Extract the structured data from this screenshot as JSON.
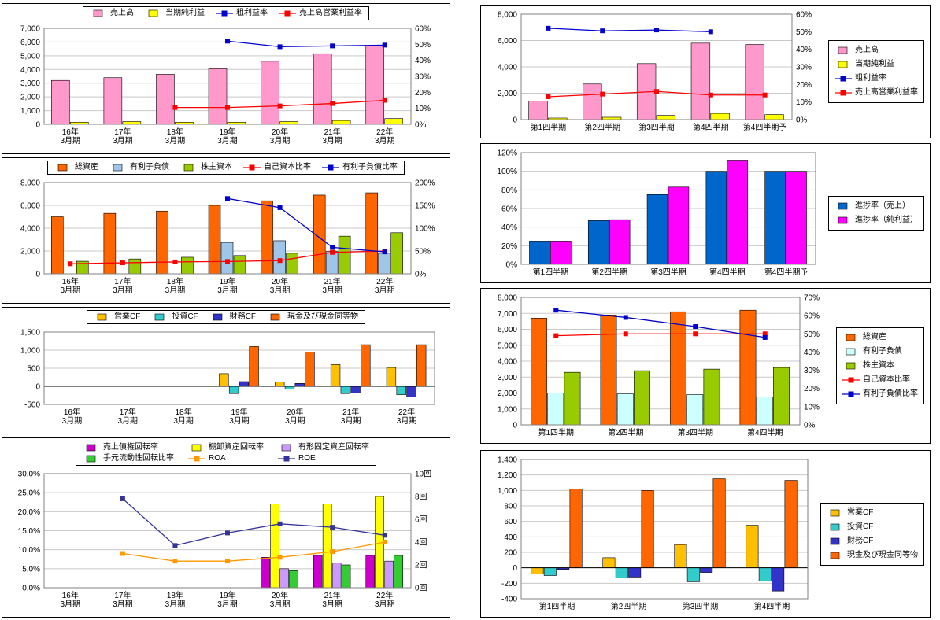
{
  "page": {
    "name": "financial-analysis-dashboard"
  },
  "chart_data": [
    {
      "id": "annual-sales-profit",
      "type": "bar",
      "legend_position": "top",
      "categories": [
        "16年 3月期",
        "17年 3月期",
        "18年 3月期",
        "19年 3月期",
        "20年 3月期",
        "21年 3月期",
        "22年 3月期"
      ],
      "series": [
        {
          "name": "売上高",
          "kind": "bar",
          "color": "#FF99CC",
          "axis": "left",
          "values": [
            3200,
            3400,
            3650,
            4050,
            4600,
            5150,
            5700
          ]
        },
        {
          "name": "当期純利益",
          "kind": "bar",
          "color": "#FFFF00",
          "axis": "left",
          "values": [
            150,
            200,
            150,
            150,
            200,
            280,
            420
          ]
        },
        {
          "name": "粗利益率",
          "kind": "line",
          "color": "#0000CC",
          "axis": "right",
          "values": [
            null,
            null,
            null,
            52,
            48.5,
            49,
            49.5
          ]
        },
        {
          "name": "売上高営業利益率",
          "kind": "line",
          "color": "#FF0000",
          "axis": "right",
          "values": [
            null,
            null,
            10.5,
            10.5,
            11.5,
            13,
            15
          ]
        }
      ],
      "left_axis": {
        "min": 0,
        "max": 7000,
        "step": 1000,
        "format": "num"
      },
      "right_axis": {
        "min": 0,
        "max": 60,
        "step": 10,
        "format": "pct"
      }
    },
    {
      "id": "annual-balance-sheet",
      "type": "bar",
      "legend_position": "top",
      "categories": [
        "16年 3月期",
        "17年 3月期",
        "18年 3月期",
        "19年 3月期",
        "20年 3月期",
        "21年 3月期",
        "22年 3月期"
      ],
      "series": [
        {
          "name": "総資産",
          "kind": "bar",
          "color": "#FF6600",
          "axis": "left",
          "values": [
            5000,
            5300,
            5500,
            6000,
            6400,
            6900,
            7100
          ]
        },
        {
          "name": "有利子負債",
          "kind": "bar",
          "color": "#9FC5E8",
          "axis": "left",
          "values": [
            null,
            null,
            null,
            2750,
            2900,
            1950,
            1800
          ]
        },
        {
          "name": "株主資本",
          "kind": "bar",
          "color": "#99CC00",
          "axis": "left",
          "values": [
            1100,
            1300,
            1450,
            1600,
            1800,
            3300,
            3600
          ]
        },
        {
          "name": "自己資本比率",
          "kind": "line",
          "color": "#FF0000",
          "axis": "right",
          "values": [
            22,
            24,
            26,
            27,
            29,
            47,
            50
          ]
        },
        {
          "name": "有利子負債比率",
          "kind": "line",
          "color": "#0000CC",
          "axis": "right",
          "values": [
            null,
            null,
            null,
            165,
            145,
            58,
            48
          ]
        }
      ],
      "left_axis": {
        "min": 0,
        "max": 8000,
        "step": 2000,
        "format": "num"
      },
      "right_axis": {
        "min": 0,
        "max": 200,
        "step": 50,
        "format": "pct"
      }
    },
    {
      "id": "annual-cash-flow",
      "type": "bar",
      "legend_position": "top",
      "categories": [
        "16年 3月期",
        "17年 3月期",
        "18年 3月期",
        "19年 3月期",
        "20年 3月期",
        "21年 3月期",
        "22年 3月期"
      ],
      "series": [
        {
          "name": "営業CF",
          "kind": "bar",
          "color": "#FFC000",
          "axis": "left",
          "values": [
            null,
            null,
            null,
            350,
            120,
            600,
            520
          ]
        },
        {
          "name": "投資CF",
          "kind": "bar",
          "color": "#33CCCC",
          "axis": "left",
          "values": [
            null,
            null,
            null,
            -200,
            -80,
            -200,
            -230
          ]
        },
        {
          "name": "財務CF",
          "kind": "bar",
          "color": "#3333CC",
          "axis": "left",
          "values": [
            null,
            null,
            null,
            130,
            80,
            -180,
            -290
          ]
        },
        {
          "name": "現金及び現金同等物",
          "kind": "bar",
          "color": "#FF6600",
          "axis": "left",
          "values": [
            null,
            null,
            null,
            1100,
            950,
            1150,
            1150
          ]
        }
      ],
      "left_axis": {
        "min": -500,
        "max": 1500,
        "step": 500,
        "format": "num"
      },
      "right_axis": null
    },
    {
      "id": "annual-turnover",
      "type": "bar",
      "legend_position": "top",
      "legend_columns": 3,
      "categories": [
        "16年 3月期",
        "17年 3月期",
        "18年 3月期",
        "19年 3月期",
        "20年 3月期",
        "21年 3月期",
        "22年 3月期"
      ],
      "series": [
        {
          "name": "売上債権回転率",
          "kind": "bar",
          "color": "#CC00CC",
          "axis": "left",
          "values": [
            null,
            null,
            null,
            null,
            8,
            8.5,
            8.5
          ]
        },
        {
          "name": "棚卸資産回転率",
          "kind": "bar",
          "color": "#FFFF00",
          "axis": "left",
          "values": [
            null,
            null,
            null,
            null,
            22,
            22,
            24
          ]
        },
        {
          "name": "有形固定資産回転率",
          "kind": "bar",
          "color": "#CC99FF",
          "axis": "left",
          "values": [
            null,
            null,
            null,
            null,
            5,
            6.5,
            7
          ]
        },
        {
          "name": "手元流動性回転比率",
          "kind": "bar",
          "color": "#33CC33",
          "axis": "left",
          "values": [
            null,
            null,
            null,
            null,
            4.5,
            6,
            8.5
          ]
        },
        {
          "name": "ROA",
          "kind": "line",
          "color": "#FF9900",
          "axis": "left",
          "values": [
            null,
            9,
            7,
            7,
            8,
            9.5,
            12
          ]
        },
        {
          "name": "ROE",
          "kind": "line",
          "color": "#333399",
          "axis": "right",
          "values": [
            null,
            7.8,
            3.7,
            4.8,
            5.6,
            5.3,
            4.6
          ]
        }
      ],
      "left_axis": {
        "min": 0,
        "max": 30,
        "step": 5,
        "format": "pct1"
      },
      "right_axis": {
        "min": 0,
        "max": 10,
        "step": 2,
        "format": "kai"
      }
    },
    {
      "id": "quarterly-sales-profit",
      "type": "bar",
      "legend_position": "right",
      "categories": [
        "第1四半期",
        "第2四半期",
        "第3四半期",
        "第4四半期",
        "第4四半期予"
      ],
      "series": [
        {
          "name": "売上高",
          "kind": "bar",
          "color": "#FF99CC",
          "axis": "left",
          "values": [
            1400,
            2700,
            4250,
            5800,
            5700
          ]
        },
        {
          "name": "当期純利益",
          "kind": "bar",
          "color": "#FFFF00",
          "axis": "left",
          "values": [
            120,
            180,
            320,
            470,
            380
          ]
        },
        {
          "name": "粗利益率",
          "kind": "line",
          "color": "#0000CC",
          "axis": "right",
          "values": [
            52,
            50.5,
            51,
            50,
            null
          ]
        },
        {
          "name": "売上高営業利益率",
          "kind": "line",
          "color": "#FF0000",
          "axis": "right",
          "values": [
            13,
            14.5,
            16,
            14,
            14
          ]
        }
      ],
      "left_axis": {
        "min": 0,
        "max": 8000,
        "step": 2000,
        "format": "num"
      },
      "right_axis": {
        "min": 0,
        "max": 60,
        "step": 10,
        "format": "pct"
      }
    },
    {
      "id": "quarterly-progress",
      "type": "bar",
      "legend_position": "right",
      "categories": [
        "第1四半期",
        "第2四半期",
        "第3四半期",
        "第4四半期",
        "第4四半期予"
      ],
      "series": [
        {
          "name": "進捗率（売上）",
          "kind": "bar",
          "color": "#0066CC",
          "axis": "left",
          "values": [
            25,
            47,
            75,
            100,
            100
          ]
        },
        {
          "name": "進捗率（純利益）",
          "kind": "bar",
          "color": "#FF00FF",
          "axis": "left",
          "values": [
            25,
            48,
            83,
            112,
            100
          ]
        }
      ],
      "left_axis": {
        "min": 0,
        "max": 120,
        "step": 20,
        "format": "pct"
      },
      "right_axis": null
    },
    {
      "id": "quarterly-balance-sheet",
      "type": "bar",
      "legend_position": "right",
      "categories": [
        "第1四半期",
        "第2四半期",
        "第3四半期",
        "第4四半期"
      ],
      "series": [
        {
          "name": "総資産",
          "kind": "bar",
          "color": "#FF6600",
          "axis": "left",
          "values": [
            6700,
            6900,
            7100,
            7200
          ]
        },
        {
          "name": "有利子負債",
          "kind": "bar",
          "color": "#CCFFFF",
          "axis": "left",
          "values": [
            2000,
            1950,
            1900,
            1750
          ]
        },
        {
          "name": "株主資本",
          "kind": "bar",
          "color": "#99CC00",
          "axis": "left",
          "values": [
            3300,
            3400,
            3500,
            3600
          ]
        },
        {
          "name": "自己資本比率",
          "kind": "line",
          "color": "#FF0000",
          "axis": "right",
          "values": [
            49,
            50,
            50,
            50
          ]
        },
        {
          "name": "有利子負債比率",
          "kind": "line",
          "color": "#0000CC",
          "axis": "right",
          "values": [
            63,
            59,
            54,
            48
          ]
        }
      ],
      "left_axis": {
        "min": 0,
        "max": 8000,
        "step": 1000,
        "format": "num"
      },
      "right_axis": {
        "min": 0,
        "max": 70,
        "step": 10,
        "format": "pct"
      }
    },
    {
      "id": "quarterly-cash-flow",
      "type": "bar",
      "legend_position": "right",
      "categories": [
        "第1四半期",
        "第2四半期",
        "第3四半期",
        "第4四半期"
      ],
      "series": [
        {
          "name": "営業CF",
          "kind": "bar",
          "color": "#FFC000",
          "axis": "left",
          "values": [
            -80,
            130,
            300,
            550
          ]
        },
        {
          "name": "投資CF",
          "kind": "bar",
          "color": "#33CCCC",
          "axis": "left",
          "values": [
            -100,
            -130,
            -180,
            -170
          ]
        },
        {
          "name": "財務CF",
          "kind": "bar",
          "color": "#3333CC",
          "axis": "left",
          "values": [
            -20,
            -120,
            -60,
            -300
          ]
        },
        {
          "name": "現金及び現金同等物",
          "kind": "bar",
          "color": "#FF6600",
          "axis": "left",
          "values": [
            1020,
            1000,
            1150,
            1130
          ]
        }
      ],
      "left_axis": {
        "min": -400,
        "max": 1400,
        "step": 200,
        "format": "num"
      },
      "right_axis": null
    }
  ],
  "style": {
    "gridline_color": "#c9c9c9",
    "plot_border_color": "#808080",
    "axis_color": "#000000"
  }
}
